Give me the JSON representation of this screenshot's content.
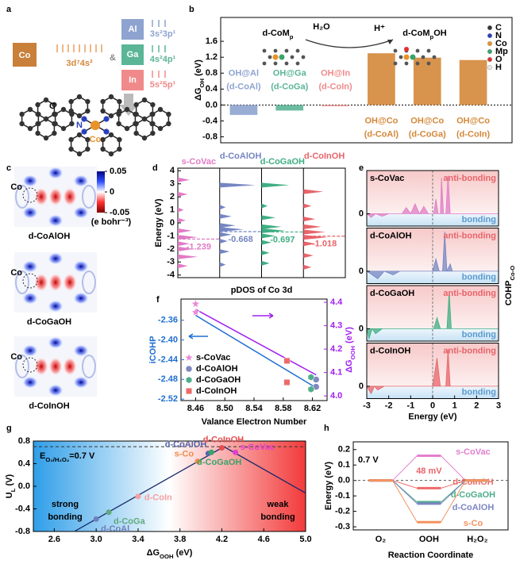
{
  "panel_a": {
    "label": "a",
    "co": {
      "symbol": "Co",
      "config": "3d⁷4s²"
    },
    "amp": "&",
    "elements": [
      {
        "symbol": "Al",
        "config": "3s²3p¹",
        "color": "#8ea3cf"
      },
      {
        "symbol": "Ga",
        "config": "4s²4p¹",
        "color": "#5bb597"
      },
      {
        "symbol": "In",
        "config": "5s²5p¹",
        "color": "#f08a8a"
      }
    ],
    "atoms": {
      "c": "C",
      "n": "N",
      "co": "Co"
    }
  },
  "panel_c": {
    "label": "c",
    "atom": "Co",
    "maps": [
      "d-CoAlOH",
      "d-CoGaOH",
      "d-CoInOH"
    ],
    "colorbar": {
      "ticks": [
        0.05,
        0,
        -0.05
      ],
      "unit": "(e bohr⁻³)"
    }
  },
  "chart_data": [
    {
      "type": "bar",
      "label": "b",
      "ylabel": {
        "main": "ΔG",
        "sub": "OH",
        "rest": " (eV)"
      },
      "ylim": [
        -0.95,
        2.2
      ],
      "yticks": [
        -0.8,
        -0.4,
        {
          "value": 0,
          "label": "0.0"
        },
        0.4,
        0.8,
        1.2,
        1.6
      ],
      "categories": [
        [
          "OH@Al",
          "(d-CoAl)"
        ],
        [
          "OH@Ga",
          "(d-CoGa)"
        ],
        [
          "OH@In",
          "(d-CoIn)"
        ],
        [
          "OH@Co",
          "(d-CoAl)"
        ],
        [
          "OH@Co",
          "(d-CoGa)"
        ],
        [
          "OH@Co",
          "(d-CoIn)"
        ]
      ],
      "values": [
        -0.25,
        -0.14,
        -0.03,
        1.3,
        1.19,
        1.13
      ],
      "colors": [
        "#8ea3cf",
        "#5bb597",
        "#f08a8a",
        "#d4883a",
        "#d4883a",
        "#d4883a"
      ],
      "scheme": {
        "left": {
          "main": "d-CoM",
          "sub": "p"
        },
        "reagent": "H₂O",
        "product": "H⁺",
        "right": {
          "main": "d-CoM",
          "sub": "p",
          "rest": "OH"
        }
      },
      "legend": [
        {
          "name": "C",
          "color": "#333333"
        },
        {
          "name": "N",
          "color": "#2a3fbf"
        },
        {
          "name": "Co",
          "color": "#e8932a"
        },
        {
          "name": "Mp",
          "color": "#3aa36b"
        },
        {
          "name": "O",
          "color": "#e03030"
        },
        {
          "name": "H",
          "color": "#e8e8e8"
        }
      ]
    },
    {
      "type": "pdos",
      "label": "d",
      "ylabel": "Energy (eV)",
      "xlabel": "pDOS of Co 3d",
      "ylim": [
        -4.2,
        4.2
      ],
      "yticks": [
        -4,
        -3,
        -2,
        -1,
        0,
        1,
        2,
        3,
        4
      ],
      "series": [
        {
          "name": "s-CoVac",
          "color": "#e07bc5",
          "center": -1.239,
          "energies": [
            3.3,
            2.2,
            1.0,
            0.2,
            -0.6,
            -1.1,
            -1.6,
            -2.0,
            -2.6,
            -3.3
          ],
          "values": [
            0.3,
            0.25,
            0.15,
            0.2,
            0.35,
            0.5,
            0.3,
            0.4,
            0.5,
            0.25
          ]
        },
        {
          "name": "d-CoAlOH",
          "color": "#7585c2",
          "center": -0.668,
          "energies": [
            2.9,
            1.2,
            0.5,
            -0.2,
            -0.5,
            -0.9,
            -1.4,
            -2.2,
            -3.2
          ],
          "values": [
            0.9,
            0.15,
            0.3,
            0.4,
            0.6,
            0.3,
            0.2,
            0.25,
            0.15
          ]
        },
        {
          "name": "d-CoGaOH",
          "color": "#3fae83",
          "center": -0.697,
          "energies": [
            2.9,
            1.3,
            0.4,
            -0.3,
            -0.6,
            -1.0,
            -1.5,
            -2.3,
            -3.1
          ],
          "values": [
            0.7,
            0.15,
            0.35,
            0.5,
            0.6,
            0.35,
            0.25,
            0.2,
            0.2
          ]
        },
        {
          "name": "d-CoInOH",
          "color": "#e8646a",
          "center": -1.018,
          "energies": [
            2.4,
            1.3,
            0.3,
            -0.3,
            -0.7,
            -1.1,
            -1.6,
            -2.5,
            -3.4
          ],
          "values": [
            0.5,
            0.2,
            0.3,
            0.45,
            0.55,
            0.6,
            0.3,
            0.25,
            0.2
          ]
        }
      ]
    },
    {
      "type": "cohp",
      "label": "e",
      "ylabel": {
        "main": "COHP",
        "sub": "Co-O"
      },
      "xlabel": "Energy (eV)",
      "xlim": [
        -3,
        3
      ],
      "xticks": [
        -3,
        -2,
        -1,
        0,
        1,
        2,
        3
      ],
      "ylim": [
        -1,
        3.5
      ],
      "yticks": [
        0
      ],
      "regions": {
        "anti": "anti-bonding",
        "bond": "bonding"
      },
      "series": [
        {
          "name": "s-CoVac",
          "color": "#e07bc5",
          "x": [
            -3,
            -2.8,
            -2.6,
            -2.3,
            -2,
            -1.4,
            -1.2,
            -1,
            -0.8,
            -0.6,
            -0.4,
            -0.2,
            0.05,
            0.15,
            0.25,
            0.35,
            0.4,
            0.5,
            0.6,
            0.7,
            0.8,
            3
          ],
          "values": [
            0,
            -0.3,
            0,
            -0.2,
            0,
            0,
            0.5,
            0,
            0.8,
            0,
            0.6,
            0,
            0,
            1.2,
            0,
            0,
            2.9,
            0,
            0,
            3.1,
            0,
            0
          ]
        },
        {
          "name": "d-CoAlOH",
          "color": "#7585c2",
          "x": [
            -3,
            -2.5,
            -2.2,
            -1.8,
            -1.5,
            0,
            0.15,
            0.3,
            0.45,
            0.55,
            0.65,
            0.8,
            0.9,
            3
          ],
          "values": [
            0,
            -0.6,
            0,
            -0.3,
            0,
            0,
            1.0,
            0,
            0,
            3.2,
            0,
            0.6,
            0,
            0
          ]
        },
        {
          "name": "d-CoGaOH",
          "color": "#3fae83",
          "x": [
            -3,
            -2.9,
            -2.75,
            -2.6,
            -2.3,
            0.05,
            0.2,
            0.35,
            0.65,
            0.75,
            0.85,
            3
          ],
          "values": [
            0,
            -0.8,
            0,
            -0.4,
            0,
            0,
            0.9,
            0,
            0,
            3.0,
            0,
            0
          ]
        },
        {
          "name": "d-CoInOH",
          "color": "#e8646a",
          "x": [
            -3,
            -2.8,
            -2.65,
            -2.5,
            -2.2,
            0,
            0.2,
            0.35,
            0.6,
            0.7,
            0.8,
            3
          ],
          "values": [
            0,
            -0.6,
            0,
            -0.3,
            0,
            0,
            2.3,
            0,
            0,
            3.0,
            0,
            0
          ]
        }
      ]
    },
    {
      "type": "scatter",
      "label": "f",
      "xlabel": "Valance Electron Number",
      "ylabel": "iCOHP",
      "y2label": {
        "main": "ΔG",
        "sub": "OOH",
        "rest": " (eV)"
      },
      "xlim": [
        8.44,
        8.64
      ],
      "xticks": [
        8.46,
        {
          "value": 8.5,
          "label": "8.50"
        },
        8.54,
        8.58,
        8.62
      ],
      "ylim": [
        -2.523,
        -2.317
      ],
      "yticks": [
        -2.52,
        -2.48,
        -2.44,
        {
          "value": -2.4,
          "label": "-2.40"
        },
        -2.36
      ],
      "y2lim": [
        3.98,
        4.414
      ],
      "y2ticks": [
        {
          "value": 4,
          "label": "4.0"
        },
        4.1,
        4.2,
        4.3,
        4.4
      ],
      "ycolor": "#1f6fd1",
      "y2color": "#a020f0",
      "legend": "lower left",
      "series": [
        {
          "name": "s-CoVac",
          "color": "#e889d8",
          "marker": "star",
          "x": 8.46,
          "icohp": -2.344,
          "dg": 4.393
        },
        {
          "name": "d-CoAlOH",
          "color": "#8088c0",
          "marker": "circle",
          "x": 8.625,
          "icohp": -2.495,
          "dg": 4.07
        },
        {
          "name": "d-CoGaOH",
          "color": "#4fae8b",
          "marker": "hexagon",
          "x": 8.618,
          "icohp": -2.5,
          "dg": 4.08
        },
        {
          "name": "d-CoInOH",
          "color": "#ee6a6a",
          "marker": "square",
          "x": 8.585,
          "icohp": -2.486,
          "dg": 4.15
        }
      ],
      "fits": [
        {
          "axis": "y",
          "color": "#1f6fd1",
          "x": [
            8.46,
            8.625
          ],
          "values": [
            -2.35,
            -2.497
          ]
        },
        {
          "axis": "y2",
          "color": "#a020f0",
          "x": [
            8.46,
            8.625
          ],
          "values": [
            4.37,
            4.09
          ]
        }
      ]
    },
    {
      "type": "volcano",
      "label": "g",
      "xlabel": {
        "main": "ΔG",
        "sub": "OOH",
        "rest": " (eV)"
      },
      "ylabel": {
        "main": "U",
        "sub": "L",
        "rest": " (V)"
      },
      "xlim": [
        2.4,
        5.0
      ],
      "xticks": [
        2.6,
        {
          "value": 3,
          "label": "3.0"
        },
        3.4,
        3.8,
        4.2,
        4.6,
        {
          "value": 5,
          "label": "5.0"
        }
      ],
      "ylim": [
        -0.8,
        0.8
      ],
      "yticks": [
        -0.8,
        -0.4,
        {
          "value": 0,
          "label": "0.0"
        },
        0.4,
        0.8
      ],
      "hline": 0.7,
      "hline_label": {
        "main": "E",
        "sub": "O₂/H₂O₂",
        "rest": "=0.7 V"
      },
      "regions": {
        "left": [
          "strong",
          "bonding"
        ],
        "right": [
          "weak",
          "bonding"
        ]
      },
      "lines": [
        {
          "x": [
            2.8,
            4.22
          ],
          "values": [
            -0.79,
            0.7
          ]
        },
        {
          "x": [
            4.22,
            5.0
          ],
          "values": [
            0.7,
            -0.12
          ]
        }
      ],
      "series": [
        {
          "name": "d-CoAl",
          "color": "#6f7fb9",
          "x": 3.0,
          "value": -0.58
        },
        {
          "name": "d-CoGa",
          "color": "#60a87f",
          "x": 3.12,
          "value": -0.46
        },
        {
          "name": "d-CoIn",
          "color": "#f4a0a0",
          "x": 3.4,
          "value": -0.18
        },
        {
          "name": "s-Co",
          "color": "#f08a4b",
          "x": 3.97,
          "value": 0.44
        },
        {
          "name": "d-CoAlOH",
          "color": "#5566aa",
          "x": 4.07,
          "value": 0.58
        },
        {
          "name": "d-CoGaOH",
          "color": "#3aa36b",
          "x": 4.1,
          "value": 0.6
        },
        {
          "name": "d-CoInOH",
          "color": "#e84d4d",
          "x": 4.2,
          "value": 0.68
        },
        {
          "name": "s-CoVac",
          "color": "#e040d0",
          "x": 4.33,
          "value": 0.6
        }
      ]
    },
    {
      "type": "profile",
      "label": "h",
      "ylabel": "Energy (eV)",
      "xlabel": "Reaction Coordinate",
      "categories": [
        "O₂",
        "OOH",
        "H₂O₂"
      ],
      "ylim": [
        -0.32,
        0.25
      ],
      "yticks": [
        -0.3,
        -0.2,
        -0.1,
        {
          "value": 0,
          "label": "0.0"
        },
        0.1,
        0.2
      ],
      "notes": {
        "potential": "0.7 V",
        "gap": "48 mV"
      },
      "series": [
        {
          "name": "s-CoVac",
          "color": "#e27fcf",
          "values": [
            0,
            0.16,
            0
          ]
        },
        {
          "name": "d-CoInOH",
          "color": "#ee6a6a",
          "values": [
            0,
            -0.05,
            0
          ]
        },
        {
          "name": "d-CoGaOH",
          "color": "#4fae8b",
          "values": [
            0,
            -0.14,
            0
          ]
        },
        {
          "name": "d-CoAlOH",
          "color": "#7b86c4",
          "values": [
            0,
            -0.15,
            0
          ]
        },
        {
          "name": "s-Co",
          "color": "#f4935e",
          "values": [
            0,
            -0.27,
            0
          ]
        }
      ]
    }
  ]
}
